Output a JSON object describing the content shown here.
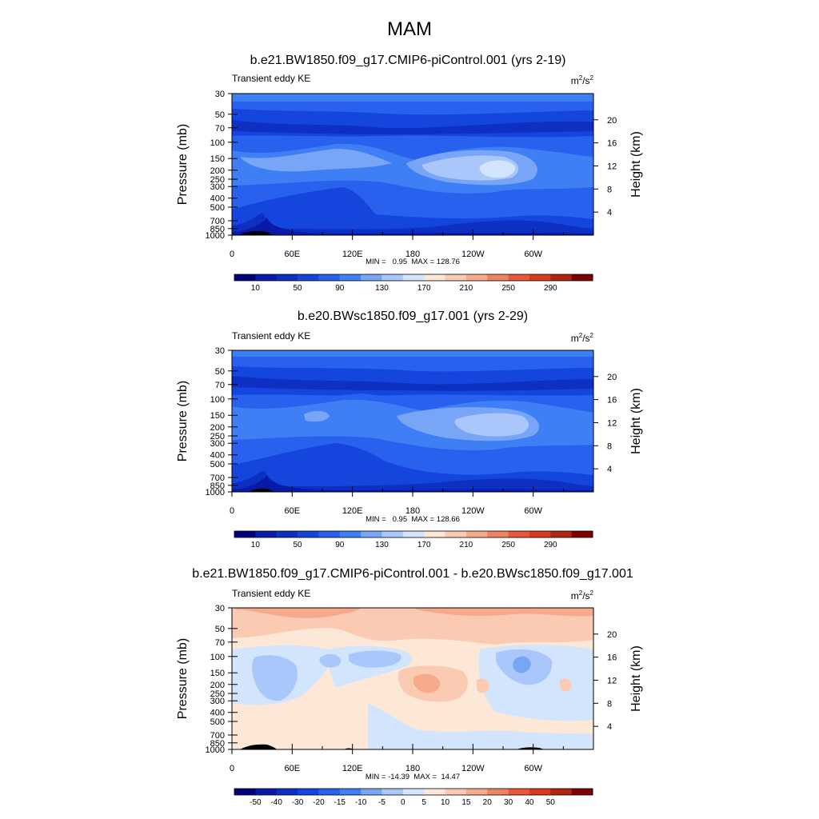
{
  "figure": {
    "title": "MAM"
  },
  "colors": {
    "full_field": [
      "#00007f",
      "#0a1aa8",
      "#0d2fc2",
      "#1446dd",
      "#2761ee",
      "#3f7ff5",
      "#79a5f7",
      "#a9c7fb",
      "#d2e5fc",
      "#fde8d8",
      "#fbcab2",
      "#f7a98c",
      "#f08264",
      "#e95738",
      "#d93a1e",
      "#b0260e",
      "#7f0000"
    ],
    "difference": [
      "#00007f",
      "#0a1aa8",
      "#0d2fc2",
      "#1446dd",
      "#2761ee",
      "#3f7ff5",
      "#79a5f7",
      "#a9c7fb",
      "#d2e5fc",
      "#fde8d8",
      "#fbcab2",
      "#f7a98c",
      "#f08264",
      "#e95738",
      "#d93a1e",
      "#b0260e",
      "#7f0000"
    ],
    "topography": "#000000"
  },
  "chart_data": [
    {
      "type": "heatmap",
      "panel_title": "b.e21.BW1850.f09_g17.CMIP6-piControl.001 (yrs 2-19)",
      "left_label": "Transient eddy KE",
      "units_base": "m",
      "units_exp1": "2",
      "units_mid": "/s",
      "units_exp2": "2",
      "ylabel": "Pressure (mb)",
      "ylabel_right": "Height (km)",
      "x_ticks": [
        "0",
        "60E",
        "120E",
        "180",
        "120W",
        "60W"
      ],
      "y_ticks": [
        "30",
        "50",
        "70",
        "100",
        "150",
        "200",
        "250",
        "300",
        "400",
        "500",
        "700",
        "850",
        "1000"
      ],
      "y_ticks_right": [
        "20",
        "16",
        "12",
        "8",
        "4"
      ],
      "min": "0.95",
      "max": "128.76",
      "stats_text": "MIN =   0.95  MAX = 128.76",
      "colorbar_labels": [
        "10",
        "50",
        "90",
        "130",
        "170",
        "210",
        "250",
        "290"
      ],
      "levels": [
        0,
        10,
        20,
        30,
        40,
        50,
        60,
        70,
        80,
        90,
        100,
        110,
        120,
        130,
        150,
        170,
        190,
        210,
        230,
        250,
        270,
        290
      ]
    },
    {
      "type": "heatmap",
      "panel_title": "b.e20.BWsc1850.f09_g17.001 (yrs 2-29)",
      "left_label": "Transient eddy KE",
      "units_base": "m",
      "units_exp1": "2",
      "units_mid": "/s",
      "units_exp2": "2",
      "ylabel": "Pressure (mb)",
      "ylabel_right": "Height (km)",
      "x_ticks": [
        "0",
        "60E",
        "120E",
        "180",
        "120W",
        "60W"
      ],
      "y_ticks": [
        "30",
        "50",
        "70",
        "100",
        "150",
        "200",
        "250",
        "300",
        "400",
        "500",
        "700",
        "850",
        "1000"
      ],
      "y_ticks_right": [
        "20",
        "16",
        "12",
        "8",
        "4"
      ],
      "min": "0.95",
      "max": "128.66",
      "stats_text": "MIN =   0.95  MAX = 128.66",
      "colorbar_labels": [
        "10",
        "50",
        "90",
        "130",
        "170",
        "210",
        "250",
        "290"
      ]
    },
    {
      "type": "heatmap",
      "panel_title": "b.e21.BW1850.f09_g17.CMIP6-piControl.001 - b.e20.BWsc1850.f09_g17.001",
      "left_label": "Transient eddy KE",
      "units_base": "m",
      "units_exp1": "2",
      "units_mid": "/s",
      "units_exp2": "2",
      "ylabel": "Pressure (mb)",
      "ylabel_right": "Height (km)",
      "x_ticks": [
        "0",
        "60E",
        "120E",
        "180",
        "120W",
        "60W"
      ],
      "y_ticks": [
        "30",
        "50",
        "70",
        "100",
        "150",
        "200",
        "250",
        "300",
        "400",
        "500",
        "700",
        "850",
        "1000"
      ],
      "y_ticks_right": [
        "20",
        "16",
        "12",
        "8",
        "4"
      ],
      "min": "-14.39",
      "max": "14.47",
      "stats_text": "MIN = -14.39  MAX =  14.47",
      "colorbar_labels": [
        "-50",
        "-40",
        "-30",
        "-20",
        "-15",
        "-10",
        "-5",
        "0",
        "5",
        "10",
        "15",
        "20",
        "30",
        "40",
        "50"
      ]
    }
  ]
}
